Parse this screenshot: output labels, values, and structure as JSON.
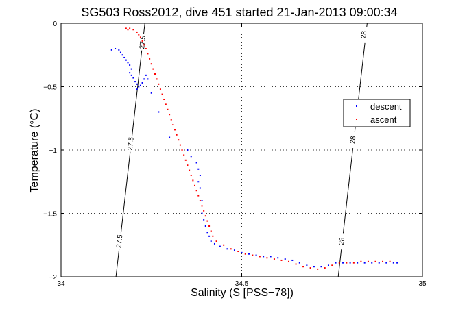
{
  "chart_data": {
    "type": "scatter",
    "title": "SG503 Ross2012, dive 451 started 21-Jan-2013 09:00:34",
    "xlabel": "Salinity (S [PSS−78])",
    "ylabel": "Temperature (°C)",
    "xlim": [
      34,
      35
    ],
    "ylim": [
      -2,
      0
    ],
    "xticks": [
      34,
      34.5,
      35
    ],
    "xtick_labels": [
      "34",
      "34.5",
      "35"
    ],
    "yticks": [
      -2,
      -1.5,
      -1,
      -0.5,
      0
    ],
    "ytick_labels": [
      "−2",
      "−1.5",
      "−1",
      "−0.5",
      "0"
    ],
    "grid": true,
    "legend_position": "right",
    "contours": [
      {
        "level": "27.5",
        "points": [
          [
            34.152,
            -2.0
          ],
          [
            34.232,
            0.0
          ]
        ],
        "labels": [
          {
            "x": 34.162,
            "y": -1.72,
            "text": "27.5"
          },
          {
            "x": 34.193,
            "y": -0.95,
            "text": "27.5"
          },
          {
            "x": 34.226,
            "y": -0.15,
            "text": "27.5"
          }
        ]
      },
      {
        "level": "28",
        "points": [
          [
            34.767,
            -2.0
          ],
          [
            34.847,
            0.0
          ]
        ],
        "labels": [
          {
            "x": 34.777,
            "y": -1.72,
            "text": "28"
          },
          {
            "x": 34.808,
            "y": -0.92,
            "text": "28"
          },
          {
            "x": 34.838,
            "y": -0.09,
            "text": "28"
          }
        ]
      }
    ],
    "series": [
      {
        "name": "descent",
        "color": "#0000ff",
        "points": [
          [
            34.14,
            -0.21
          ],
          [
            34.15,
            -0.2
          ],
          [
            34.16,
            -0.21
          ],
          [
            34.165,
            -0.23
          ],
          [
            34.17,
            -0.25
          ],
          [
            34.175,
            -0.27
          ],
          [
            34.18,
            -0.29
          ],
          [
            34.185,
            -0.31
          ],
          [
            34.19,
            -0.33
          ],
          [
            34.195,
            -0.36
          ],
          [
            34.19,
            -0.39
          ],
          [
            34.195,
            -0.41
          ],
          [
            34.2,
            -0.43
          ],
          [
            34.205,
            -0.46
          ],
          [
            34.21,
            -0.48
          ],
          [
            34.215,
            -0.5
          ],
          [
            34.21,
            -0.52
          ],
          [
            34.22,
            -0.49
          ],
          [
            34.225,
            -0.47
          ],
          [
            34.23,
            -0.44
          ],
          [
            34.235,
            -0.41
          ],
          [
            34.24,
            -0.44
          ],
          [
            34.25,
            -0.55
          ],
          [
            34.27,
            -0.7
          ],
          [
            34.3,
            -0.9
          ],
          [
            34.35,
            -1.0
          ],
          [
            34.36,
            -1.05
          ],
          [
            34.375,
            -1.1
          ],
          [
            34.38,
            -1.15
          ],
          [
            34.385,
            -1.2
          ],
          [
            34.38,
            -1.25
          ],
          [
            34.385,
            -1.3
          ],
          [
            34.39,
            -1.4
          ],
          [
            34.39,
            -1.5
          ],
          [
            34.395,
            -1.55
          ],
          [
            34.4,
            -1.6
          ],
          [
            34.405,
            -1.65
          ],
          [
            34.41,
            -1.68
          ],
          [
            34.415,
            -1.72
          ],
          [
            34.425,
            -1.74
          ],
          [
            34.44,
            -1.76
          ],
          [
            34.46,
            -1.78
          ],
          [
            34.48,
            -1.79
          ],
          [
            34.5,
            -1.81
          ],
          [
            34.52,
            -1.82
          ],
          [
            34.54,
            -1.83
          ],
          [
            34.56,
            -1.84
          ],
          [
            34.58,
            -1.84
          ],
          [
            34.6,
            -1.85
          ],
          [
            34.62,
            -1.86
          ],
          [
            34.64,
            -1.87
          ],
          [
            34.66,
            -1.89
          ],
          [
            34.68,
            -1.91
          ],
          [
            34.7,
            -1.92
          ],
          [
            34.72,
            -1.92
          ],
          [
            34.74,
            -1.91
          ],
          [
            34.76,
            -1.89
          ],
          [
            34.78,
            -1.89
          ],
          [
            34.8,
            -1.89
          ],
          [
            34.82,
            -1.89
          ],
          [
            34.84,
            -1.89
          ],
          [
            34.86,
            -1.89
          ],
          [
            34.88,
            -1.89
          ],
          [
            34.9,
            -1.89
          ],
          [
            34.92,
            -1.89
          ],
          [
            34.93,
            -1.89
          ]
        ]
      },
      {
        "name": "ascent",
        "color": "#ff0000",
        "points": [
          [
            34.18,
            -0.04
          ],
          [
            34.185,
            -0.05
          ],
          [
            34.19,
            -0.04
          ],
          [
            34.2,
            -0.05
          ],
          [
            34.21,
            -0.07
          ],
          [
            34.215,
            -0.09
          ],
          [
            34.22,
            -0.11
          ],
          [
            34.225,
            -0.14
          ],
          [
            34.23,
            -0.17
          ],
          [
            34.235,
            -0.2
          ],
          [
            34.24,
            -0.24
          ],
          [
            34.245,
            -0.28
          ],
          [
            34.25,
            -0.32
          ],
          [
            34.255,
            -0.36
          ],
          [
            34.26,
            -0.4
          ],
          [
            34.265,
            -0.44
          ],
          [
            34.27,
            -0.48
          ],
          [
            34.275,
            -0.52
          ],
          [
            34.28,
            -0.56
          ],
          [
            34.285,
            -0.6
          ],
          [
            34.29,
            -0.64
          ],
          [
            34.295,
            -0.68
          ],
          [
            34.3,
            -0.72
          ],
          [
            34.305,
            -0.76
          ],
          [
            34.31,
            -0.8
          ],
          [
            34.315,
            -0.84
          ],
          [
            34.32,
            -0.88
          ],
          [
            34.325,
            -0.92
          ],
          [
            34.33,
            -0.96
          ],
          [
            34.335,
            -1.0
          ],
          [
            34.34,
            -1.04
          ],
          [
            34.345,
            -1.08
          ],
          [
            34.35,
            -1.12
          ],
          [
            34.355,
            -1.16
          ],
          [
            34.36,
            -1.2
          ],
          [
            34.365,
            -1.24
          ],
          [
            34.37,
            -1.28
          ],
          [
            34.375,
            -1.32
          ],
          [
            34.38,
            -1.36
          ],
          [
            34.385,
            -1.4
          ],
          [
            34.39,
            -1.44
          ],
          [
            34.395,
            -1.48
          ],
          [
            34.4,
            -1.52
          ],
          [
            34.405,
            -1.56
          ],
          [
            34.41,
            -1.6
          ],
          [
            34.415,
            -1.64
          ],
          [
            34.42,
            -1.68
          ],
          [
            34.43,
            -1.72
          ],
          [
            34.45,
            -1.75
          ],
          [
            34.47,
            -1.78
          ],
          [
            34.49,
            -1.8
          ],
          [
            34.51,
            -1.82
          ],
          [
            34.53,
            -1.83
          ],
          [
            34.55,
            -1.84
          ],
          [
            34.57,
            -1.85
          ],
          [
            34.59,
            -1.86
          ],
          [
            34.61,
            -1.87
          ],
          [
            34.63,
            -1.88
          ],
          [
            34.65,
            -1.9
          ],
          [
            34.67,
            -1.92
          ],
          [
            34.69,
            -1.93
          ],
          [
            34.71,
            -1.94
          ],
          [
            34.73,
            -1.93
          ],
          [
            34.75,
            -1.91
          ],
          [
            34.77,
            -1.89
          ],
          [
            34.79,
            -1.89
          ],
          [
            34.81,
            -1.89
          ],
          [
            34.83,
            -1.88
          ],
          [
            34.85,
            -1.88
          ],
          [
            34.87,
            -1.88
          ],
          [
            34.89,
            -1.88
          ],
          [
            34.91,
            -1.88
          ]
        ]
      }
    ]
  }
}
